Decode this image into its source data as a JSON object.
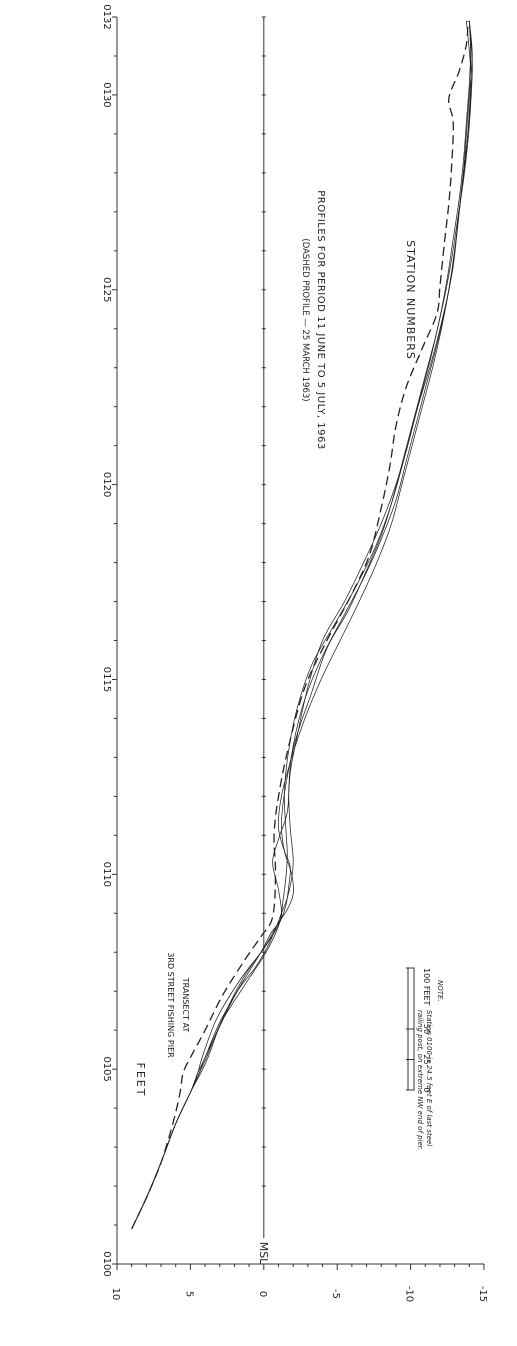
{
  "chart_data": {
    "type": "line",
    "title": "PROFILES FOR PERIOD 11 JUNE TO 5 JULY, 1963",
    "subtitle": "(DASHED PROFILE — 25 MARCH 1963)",
    "xlabel": "STATION NUMBERS",
    "ylabel": "FEET",
    "xlim": [
      100,
      132
    ],
    "ylim": [
      -15,
      10
    ],
    "x_ticks": [
      100,
      105,
      110,
      115,
      120,
      125,
      130,
      132
    ],
    "x_tick_labels": [
      "0100",
      "0105",
      "0110",
      "0115",
      "0120",
      "0125",
      "0130",
      "0132"
    ],
    "y_ticks": [
      10,
      5,
      0,
      -5,
      -10,
      -15
    ],
    "y_tick_labels": [
      "10",
      "5",
      "0",
      "-5",
      "-10",
      "-15"
    ],
    "reference_line": {
      "y": 0,
      "label": "MSL"
    },
    "series": [
      {
        "style": "dashed",
        "x": [
          100.9,
          101.7,
          102.6,
          103.6,
          104.4,
          104.9,
          105.3,
          106.0,
          106.9,
          107.8,
          108.4,
          108.9,
          110.0,
          111.0,
          112.0,
          113.3,
          114.8,
          116.0,
          117.2,
          118.2,
          119.4,
          120.5,
          121.5,
          122.5,
          123.5,
          124.4,
          125.1,
          126.2,
          127.2,
          128.2,
          129.3,
          129.9,
          130.6,
          131.3,
          131.9
        ],
        "y": [
          9.0,
          8.0,
          7.0,
          6.2,
          5.7,
          5.5,
          5.0,
          4.0,
          2.8,
          1.3,
          0.2,
          -0.6,
          -0.8,
          -0.7,
          -1.0,
          -1.7,
          -2.8,
          -4.3,
          -6.0,
          -7.2,
          -8.0,
          -8.6,
          -9.0,
          -9.7,
          -10.8,
          -11.8,
          -12.0,
          -12.3,
          -12.6,
          -12.8,
          -12.9,
          -12.6,
          -13.3,
          -13.8,
          -13.9
        ]
      },
      {
        "style": "solid",
        "x": [
          100.9,
          101.7,
          102.6,
          103.6,
          104.4,
          104.9,
          105.3,
          106.2,
          107.2,
          108.0,
          108.5,
          108.9,
          109.6,
          110.3,
          110.9,
          111.6,
          112.6,
          113.6,
          114.8,
          116.0,
          117.0,
          118.0,
          119.0,
          120.0,
          121.0,
          122.0,
          123.0,
          124.0,
          125.0,
          126.0,
          127.0,
          128.0,
          129.0,
          130.0,
          131.0,
          131.9
        ],
        "y": [
          9.0,
          8.0,
          7.0,
          6.0,
          5.0,
          4.5,
          4.0,
          3.0,
          1.5,
          0.2,
          -0.5,
          -1.2,
          -1.0,
          -0.6,
          -1.0,
          -1.6,
          -1.8,
          -2.3,
          -3.0,
          -4.0,
          -5.5,
          -6.8,
          -8.0,
          -9.0,
          -9.8,
          -10.5,
          -11.3,
          -12.0,
          -12.6,
          -13.0,
          -13.3,
          -13.6,
          -13.9,
          -14.1,
          -14.1,
          -14.0
        ]
      },
      {
        "style": "solid",
        "x": [
          100.9,
          101.7,
          102.6,
          103.6,
          104.4,
          104.9,
          105.3,
          106.3,
          107.3,
          108.1,
          108.7,
          109.1,
          109.5,
          110.0,
          110.6,
          111.3,
          112.3,
          113.5,
          114.6,
          115.8,
          116.8,
          117.8,
          118.8,
          119.8,
          120.8,
          121.8,
          122.8,
          123.8,
          124.8,
          125.8,
          126.8,
          127.8,
          128.8,
          129.8,
          130.8,
          131.9
        ],
        "y": [
          9.0,
          8.0,
          7.0,
          6.0,
          5.0,
          4.5,
          4.2,
          3.2,
          1.6,
          0.0,
          -0.9,
          -1.6,
          -2.0,
          -1.9,
          -1.4,
          -1.2,
          -1.5,
          -2.2,
          -3.2,
          -4.3,
          -5.8,
          -7.0,
          -8.1,
          -8.9,
          -9.6,
          -10.3,
          -11.0,
          -11.7,
          -12.3,
          -12.8,
          -13.2,
          -13.6,
          -13.9,
          -14.1,
          -14.2,
          -14.0
        ]
      },
      {
        "style": "solid",
        "x": [
          100.9,
          101.7,
          102.6,
          103.6,
          104.4,
          104.9,
          105.3,
          106.3,
          107.4,
          108.2,
          108.7,
          109.2,
          109.7,
          110.2,
          110.6,
          111.2,
          112.0,
          113.0,
          114.0,
          115.0,
          116.0,
          117.0,
          118.0,
          119.0,
          120.0,
          121.0,
          122.0,
          123.0,
          124.0,
          125.0,
          126.0,
          127.0,
          128.0,
          129.0,
          130.0,
          131.0,
          131.9
        ],
        "y": [
          9.0,
          8.0,
          7.0,
          6.0,
          5.0,
          4.3,
          3.8,
          2.8,
          1.3,
          -0.2,
          -1.0,
          -1.5,
          -1.7,
          -1.8,
          -1.4,
          -1.0,
          -1.2,
          -1.9,
          -2.8,
          -3.9,
          -5.2,
          -6.5,
          -7.7,
          -8.7,
          -9.4,
          -10.1,
          -10.8,
          -11.5,
          -12.1,
          -12.6,
          -13.0,
          -13.3,
          -13.6,
          -13.8,
          -14.0,
          -14.2,
          -14.0
        ]
      },
      {
        "style": "solid",
        "x": [
          100.9,
          101.7,
          102.6,
          103.6,
          104.4,
          104.9,
          105.3,
          106.2,
          107.1,
          107.9,
          108.4,
          108.8,
          109.3,
          109.9,
          110.5,
          111.2,
          112.1,
          113.2,
          114.3,
          115.4,
          116.4,
          117.4,
          118.4,
          119.4,
          120.3,
          121.3,
          122.3,
          123.3,
          124.3,
          125.3,
          126.3,
          127.3,
          128.3,
          129.3,
          130.3,
          131.3,
          131.9
        ],
        "y": [
          9.0,
          8.0,
          7.0,
          6.0,
          5.0,
          4.4,
          3.9,
          2.9,
          1.4,
          0.0,
          -0.7,
          -1.1,
          -1.3,
          -1.5,
          -1.6,
          -1.5,
          -1.4,
          -1.7,
          -2.3,
          -3.3,
          -4.8,
          -6.3,
          -7.6,
          -8.6,
          -9.3,
          -10.0,
          -10.7,
          -11.4,
          -12.0,
          -12.5,
          -12.9,
          -13.3,
          -13.6,
          -13.8,
          -14.0,
          -14.1,
          -14.0
        ]
      },
      {
        "style": "solid",
        "x": [
          100.9,
          101.7,
          102.6,
          103.6,
          104.4,
          104.9,
          105.3,
          106.1,
          107.0,
          107.6,
          108.1,
          108.6,
          109.0,
          109.4,
          109.9,
          110.4,
          111.2,
          112.2,
          113.3,
          114.5,
          115.6,
          116.6,
          117.6,
          118.6,
          119.6,
          120.6,
          121.6,
          122.6,
          123.6,
          124.6,
          125.6,
          126.6,
          127.6,
          128.6,
          129.6,
          130.6,
          131.9
        ],
        "y": [
          9.0,
          8.0,
          7.0,
          6.0,
          5.0,
          4.4,
          4.0,
          3.0,
          1.8,
          0.6,
          -0.2,
          -0.8,
          -1.2,
          -1.6,
          -1.9,
          -2.0,
          -1.8,
          -1.7,
          -2.0,
          -2.8,
          -4.0,
          -5.4,
          -6.8,
          -8.0,
          -9.0,
          -9.7,
          -10.4,
          -11.1,
          -11.8,
          -12.4,
          -12.9,
          -13.2,
          -13.5,
          -13.8,
          -14.0,
          -14.1,
          -13.8
        ]
      }
    ],
    "note": {
      "heading": "NOTE.",
      "line1": "Station 0100 is 24.5 feet E of last steel",
      "line2": "railing post, on extreme NW end of pier."
    },
    "transect": {
      "line1": "TRANSECT AT",
      "line2": "3RD STREET FISHING PIER"
    },
    "scale_bar": {
      "labels": [
        "0",
        "25",
        "50",
        "100 FEET"
      ]
    }
  }
}
